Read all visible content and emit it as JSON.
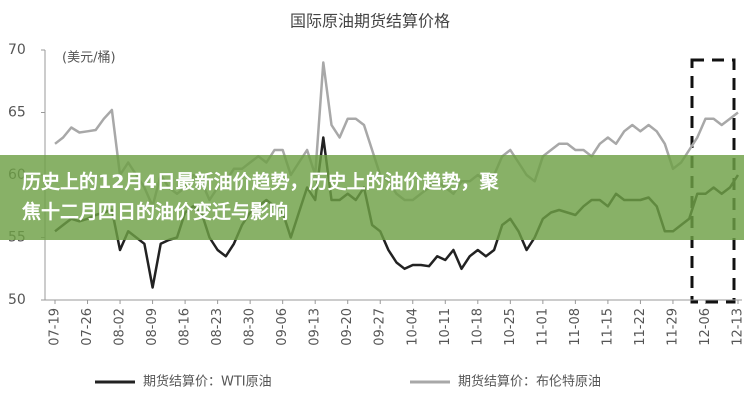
{
  "chart_data": {
    "type": "line",
    "title": "国际原油期货结算价格",
    "y_label": "(美元/桶)",
    "categories": [
      "07-19",
      null,
      null,
      null,
      "07-26",
      null,
      null,
      null,
      "08-02",
      null,
      null,
      null,
      "08-09",
      null,
      null,
      null,
      "08-16",
      null,
      null,
      null,
      "08-23",
      null,
      null,
      null,
      "08-30",
      null,
      null,
      null,
      "09-06",
      null,
      null,
      null,
      "09-13",
      null,
      null,
      null,
      "09-20",
      null,
      null,
      null,
      "09-27",
      null,
      null,
      null,
      "10-04",
      null,
      null,
      null,
      "10-11",
      null,
      null,
      null,
      "10-18",
      null,
      null,
      null,
      "10-25",
      null,
      null,
      null,
      "11-01",
      null,
      null,
      null,
      "11-08",
      null,
      null,
      null,
      "11-15",
      null,
      null,
      null,
      "11-22",
      null,
      null,
      null,
      "11-29",
      null,
      null,
      null,
      "12-06",
      null,
      null,
      null,
      "12-13"
    ],
    "series": [
      {
        "name": "期货结算价：WTI原油",
        "color": "#222222",
        "values": [
          55.5,
          56,
          56.5,
          56.3,
          56.5,
          56.8,
          57,
          57.2,
          54,
          55.5,
          55,
          54.5,
          51,
          54.5,
          54.8,
          55,
          57,
          57.5,
          57,
          55,
          54,
          53.5,
          54.5,
          56,
          57,
          57.5,
          58,
          57.5,
          57,
          55,
          57,
          59,
          58,
          63,
          58,
          58,
          58.5,
          58,
          59,
          56,
          55.5,
          54,
          53,
          52.5,
          52.8,
          52.8,
          52.7,
          53.5,
          53.2,
          54,
          52.5,
          53.5,
          54,
          53.5,
          54,
          56,
          56.5,
          55.5,
          54,
          55,
          56.5,
          57,
          57.2,
          57,
          56.8,
          57.5,
          58,
          58,
          57.5,
          58.5,
          58,
          58,
          58,
          58.2,
          57.5,
          55.5,
          55.5,
          56,
          56.5,
          58.5,
          58.5,
          59,
          58.5,
          59,
          60
        ]
      },
      {
        "name": "期货结算价：布伦特原油",
        "color": "#a8a8a8",
        "values": [
          62.5,
          63,
          63.8,
          63.4,
          63.5,
          63.6,
          64.5,
          65.2,
          60,
          61,
          60,
          59,
          57.5,
          60,
          59,
          58.5,
          59,
          60,
          59.5,
          58,
          59,
          59.5,
          60.5,
          60.5,
          61,
          61.5,
          61,
          62,
          62,
          60,
          61,
          62,
          60,
          69,
          64,
          63,
          64.5,
          64.5,
          64,
          62,
          60,
          59.5,
          58.5,
          58,
          58,
          58.5,
          59,
          59.5,
          59,
          58.5,
          59.5,
          59.5,
          60,
          59.5,
          60,
          61.5,
          62,
          61,
          60,
          59.5,
          61.5,
          62,
          62.5,
          62.5,
          62,
          62,
          61.5,
          62.5,
          63,
          62.5,
          63.5,
          64,
          63.5,
          64,
          63.5,
          62.5,
          60.5,
          61,
          62,
          63,
          64.5,
          64.5,
          64,
          64.5,
          65
        ]
      }
    ],
    "ylim": [
      50,
      70
    ],
    "yticks": [
      50,
      55,
      60,
      65,
      70
    ],
    "grid": false
  },
  "banner": {
    "lines": [
      "历史上的12月4日最新油价趋势，历史上的油价趋势，聚",
      "焦十二月四日的油价变迁与影响"
    ]
  }
}
